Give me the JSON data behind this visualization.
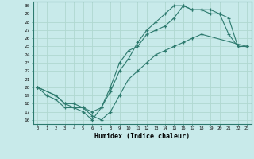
{
  "xlabel": "Humidex (Indice chaleur)",
  "xlim": [
    -0.5,
    23.5
  ],
  "ylim": [
    15.5,
    30.5
  ],
  "xticks": [
    0,
    1,
    2,
    3,
    4,
    5,
    6,
    7,
    8,
    9,
    10,
    11,
    12,
    13,
    14,
    15,
    16,
    17,
    18,
    19,
    20,
    21,
    22,
    23
  ],
  "yticks": [
    16,
    17,
    18,
    19,
    20,
    21,
    22,
    23,
    24,
    25,
    26,
    27,
    28,
    29,
    30
  ],
  "bg_color": "#c8eaea",
  "line_color": "#2d7a6e",
  "grid_color": "#b0d8d0",
  "line1_x": [
    0,
    1,
    2,
    3,
    4,
    5,
    6,
    7,
    8,
    9,
    10,
    11,
    12,
    13,
    14,
    15,
    16,
    17,
    18,
    19,
    20,
    21,
    22,
    23
  ],
  "line1_y": [
    20,
    19,
    18.5,
    17.5,
    17.5,
    17,
    16,
    17.5,
    20,
    23,
    24.5,
    25,
    26.5,
    27,
    27.5,
    28.5,
    30,
    29.5,
    29.5,
    29.5,
    29,
    28.5,
    25,
    25
  ],
  "line2_x": [
    0,
    2,
    3,
    4,
    5,
    6,
    7,
    8,
    9,
    10,
    11,
    12,
    13,
    14,
    15,
    16,
    17,
    18,
    19,
    20,
    21,
    22,
    23
  ],
  "line2_y": [
    20,
    19,
    18,
    17.5,
    17.5,
    17,
    17.5,
    19.5,
    22,
    23.5,
    25.5,
    27,
    28,
    29,
    30,
    30,
    29.5,
    29.5,
    29,
    29,
    26.5,
    25,
    25
  ],
  "line3_x": [
    0,
    2,
    3,
    4,
    5,
    6,
    7,
    8,
    9,
    10,
    11,
    12,
    13,
    14,
    15,
    16,
    17,
    18,
    23
  ],
  "line3_y": [
    20,
    19,
    18,
    18,
    17.5,
    16.5,
    16,
    17,
    19,
    21,
    22,
    23,
    24,
    24.5,
    25,
    25.5,
    26,
    26.5,
    25
  ]
}
